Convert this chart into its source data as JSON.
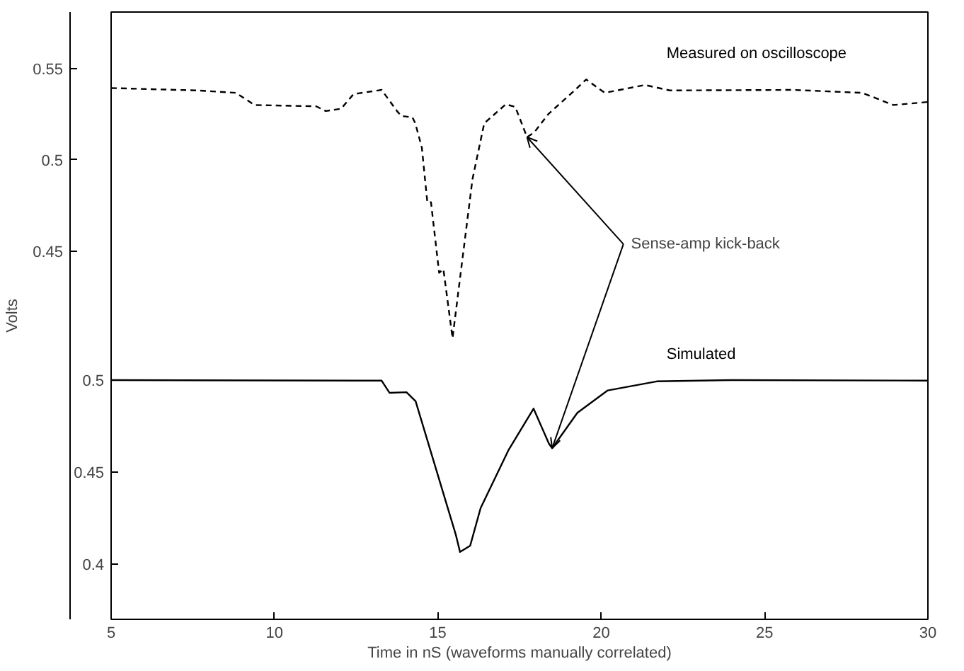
{
  "chart_data": {
    "type": "line",
    "xlabel": "Time in nS (waveforms manually correlated)",
    "ylabel": "Volts",
    "xlim": [
      5,
      30
    ],
    "xticks": [
      5,
      10,
      15,
      20,
      25,
      30
    ],
    "ylim": [
      0.248,
      0.581
    ],
    "yticks": [
      0.45,
      0.5,
      0.55
    ],
    "y2lim": [
      0.37,
      0.7
    ],
    "y2ticks": [
      0.4,
      0.45,
      0.5
    ],
    "grid": false,
    "annotations": [
      {
        "text": "Sense-amp kick-back",
        "x": 17.73,
        "y": 0.5124
      }
    ],
    "series": [
      {
        "name": "Measured on oscilloscope",
        "color": "#000000",
        "line_style": "dashed",
        "x": [
          5,
          7.68,
          8.82,
          9.39,
          11.28,
          11.57,
          12.04,
          12.42,
          13.28,
          13.75,
          13.88,
          14.22,
          14.31,
          14.51,
          14.68,
          14.79,
          15.04,
          15.17,
          15.45,
          15.7,
          16.06,
          16.42,
          17.08,
          17.37,
          17.73,
          17.95,
          18.39,
          19.11,
          19.54,
          20.11,
          21.34,
          22.1,
          25.9,
          27.99,
          28.94,
          30
        ],
        "values": [
          0.5393,
          0.538,
          0.5367,
          0.53,
          0.5293,
          0.5267,
          0.528,
          0.536,
          0.5383,
          0.5267,
          0.524,
          0.5233,
          0.52,
          0.5067,
          0.4765,
          0.4767,
          0.438,
          0.44,
          0.4022,
          0.438,
          0.4893,
          0.52,
          0.5304,
          0.529,
          0.5124,
          0.515,
          0.5252,
          0.5368,
          0.544,
          0.5367,
          0.541,
          0.538,
          0.5383,
          0.5367,
          0.53,
          0.5317
        ]
      },
      {
        "name": "Simulated",
        "color": "#000000",
        "line_style": "solid",
        "axis": "y2",
        "x": [
          5,
          13.28,
          13.52,
          14.04,
          14.32,
          15.55,
          15.68,
          15.99,
          16.31,
          17.17,
          17.93,
          18.4,
          18.5,
          19.27,
          20.2,
          21.7,
          24,
          30
        ],
        "values": [
          0.5,
          0.4997,
          0.4931,
          0.4934,
          0.4885,
          0.416,
          0.4066,
          0.41,
          0.4305,
          0.4622,
          0.4845,
          0.4655,
          0.463,
          0.4822,
          0.4944,
          0.4993,
          0.5,
          0.4997
        ]
      }
    ]
  }
}
